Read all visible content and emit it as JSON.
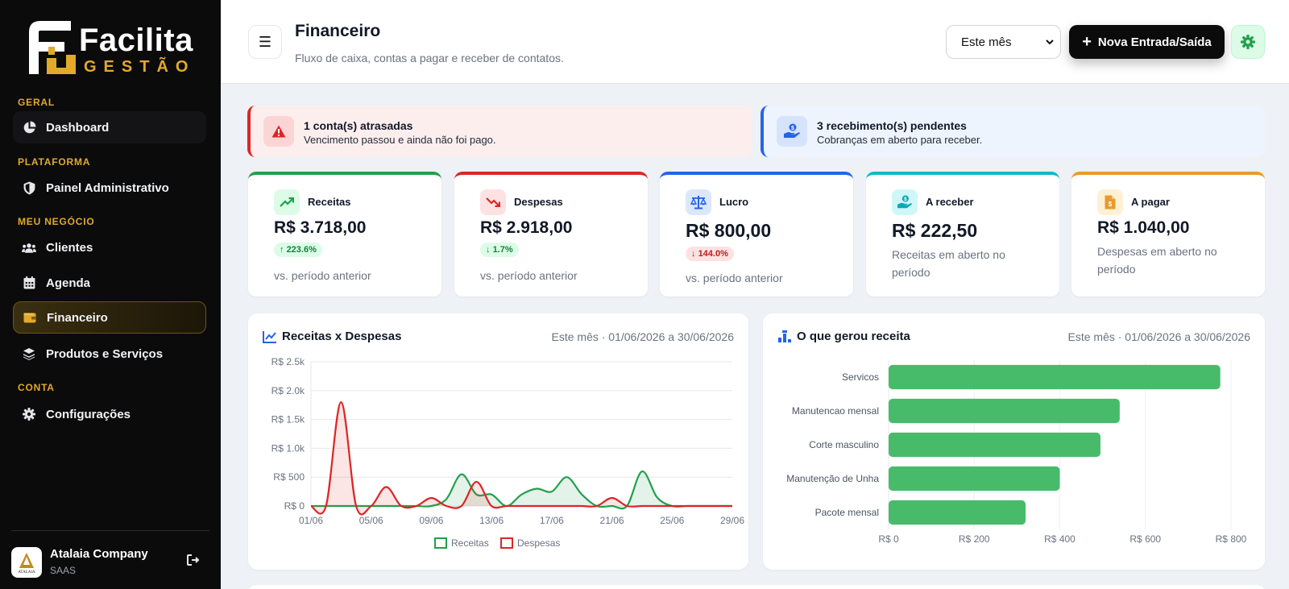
{
  "sidebar": {
    "logo": {
      "brand": "Facilita",
      "sub": "GESTÃO"
    },
    "sections": {
      "geral": "GERAL",
      "plataforma": "PLATAFORMA",
      "negocio": "MEU NEGÓCIO",
      "conta": "CONTA"
    },
    "items": {
      "dashboard": "Dashboard",
      "admin": "Painel Administrativo",
      "clientes": "Clientes",
      "agenda": "Agenda",
      "financeiro": "Financeiro",
      "produtos": "Produtos e Serviços",
      "config": "Configurações"
    },
    "company": {
      "name": "Atalaia Company",
      "plan": "SAAS",
      "logo_text": "ATALAIA"
    }
  },
  "header": {
    "title": "Financeiro",
    "subtitle": "Fluxo de caixa, contas a pagar e receber de contatos.",
    "period_select": "Este mês",
    "new_button": "Nova Entrada/Saída",
    "menu_icon": "☰"
  },
  "alerts": {
    "overdue": {
      "title": "1 conta(s) atrasadas",
      "desc": "Vencimento passou e ainda não foi pago."
    },
    "pending": {
      "title": "3 recebimento(s) pendentes",
      "desc": "Cobranças em aberto para receber."
    }
  },
  "kpis": {
    "receitas": {
      "label": "Receitas",
      "value": "R$ 3.718,00",
      "badge": "223.6%",
      "note": "vs. período anterior"
    },
    "despesas": {
      "label": "Despesas",
      "value": "R$ 2.918,00",
      "badge": "1.7%",
      "note": "vs. período anterior"
    },
    "lucro": {
      "label": "Lucro",
      "value": "R$ 800,00",
      "badge": "144.0%",
      "note": "vs. período anterior"
    },
    "areceber": {
      "label": "A receber",
      "value": "R$ 222,50",
      "note": "Receitas em aberto no período"
    },
    "apagar": {
      "label": "A pagar",
      "value": "R$ 1.040,00",
      "note": "Despesas em aberto no período"
    }
  },
  "colors": {
    "green": "#22a04b",
    "red": "#dc2626",
    "blue": "#2563eb",
    "teal": "#14b8c4",
    "orange": "#e89a2e",
    "gold": "#e2a92b"
  },
  "charts": {
    "left": {
      "title": "Receitas x Despesas",
      "period": "Este mês · 01/06/2026 a 30/06/2026"
    },
    "right": {
      "title": "O que gerou receita",
      "period": "Este mês · 01/06/2026 a 30/06/2026"
    }
  },
  "chart_data": [
    {
      "type": "line",
      "title": "Receitas x Despesas",
      "x": [
        "01/06",
        "02/06",
        "03/06",
        "04/06",
        "05/06",
        "06/06",
        "07/06",
        "08/06",
        "09/06",
        "10/06",
        "11/06",
        "12/06",
        "13/06",
        "14/06",
        "15/06",
        "16/06",
        "17/06",
        "18/06",
        "19/06",
        "20/06",
        "21/06",
        "22/06",
        "23/06",
        "24/06",
        "25/06",
        "26/06",
        "27/06",
        "28/06",
        "29/06"
      ],
      "x_ticks": [
        "01/06",
        "05/06",
        "09/06",
        "13/06",
        "17/06",
        "21/06",
        "25/06",
        "29/06"
      ],
      "y_ticks": [
        "R$ 0",
        "R$ 500",
        "R$ 1.0k",
        "R$ 1.5k",
        "R$ 2.0k",
        "R$ 2.5k"
      ],
      "ylim": [
        0,
        2500
      ],
      "legend": "bottom",
      "series": [
        {
          "name": "Receitas",
          "color": "#22a04b",
          "values": [
            0,
            0,
            0,
            0,
            0,
            0,
            0,
            0,
            0,
            120,
            550,
            200,
            200,
            0,
            200,
            300,
            250,
            500,
            200,
            0,
            0,
            0,
            600,
            150,
            0,
            0,
            0,
            0,
            0
          ]
        },
        {
          "name": "Despesas",
          "color": "#dc2626",
          "values": [
            0,
            0,
            1800,
            0,
            0,
            330,
            0,
            0,
            140,
            0,
            0,
            420,
            0,
            0,
            0,
            0,
            0,
            0,
            0,
            0,
            140,
            0,
            0,
            0,
            0,
            0,
            0,
            0,
            0
          ]
        }
      ]
    },
    {
      "type": "bar",
      "orientation": "horizontal",
      "title": "O que gerou receita",
      "categories": [
        "Servicos",
        "Manutencao mensal",
        "Corte masculino",
        "Manutenção de Unha",
        "Pacote mensal"
      ],
      "values": [
        775,
        540,
        495,
        400,
        320
      ],
      "x_ticks": [
        "R$ 0",
        "R$ 200",
        "R$ 400",
        "R$ 600",
        "R$ 800"
      ],
      "xlim": [
        0,
        800
      ],
      "color": "#48bb6a"
    }
  ]
}
